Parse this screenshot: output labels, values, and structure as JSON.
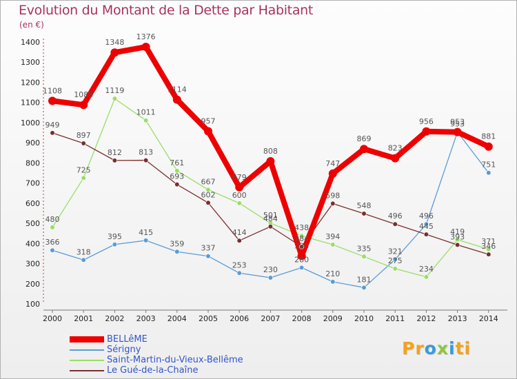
{
  "chart_data": {
    "type": "line",
    "title": "Evolution du Montant de la Dette par Habitant",
    "subtitle": "(en €)",
    "x": [
      "2000",
      "2001",
      "2002",
      "2003",
      "2004",
      "2005",
      "2006",
      "2007",
      "2008",
      "2009",
      "2010",
      "2011",
      "2012",
      "2013",
      "2014"
    ],
    "ylim": [
      100,
      1400
    ],
    "yticks": [
      100,
      200,
      300,
      400,
      500,
      600,
      700,
      800,
      900,
      1000,
      1100,
      1200,
      1300,
      1400
    ],
    "grid": false,
    "legend_position": "bottom-left",
    "series": [
      {
        "name": "BELLêME",
        "color": "#ee0000",
        "values": [
          1108,
          1088,
          1348,
          1376,
          1114,
          957,
          679,
          808,
          338,
          747,
          869,
          823,
          956,
          953,
          881
        ],
        "labels": [
          "1108",
          "1088",
          "1348",
          "1376",
          "1114",
          "957",
          "679",
          "808",
          "338",
          "747",
          "869",
          "823",
          "956",
          "953",
          "881"
        ]
      },
      {
        "name": "Sérigny",
        "color": "#5b9bd5",
        "values": [
          366,
          318,
          395,
          415,
          359,
          337,
          253,
          230,
          280,
          210,
          181,
          321,
          496,
          953,
          751
        ],
        "labels": [
          "366",
          "318",
          "395",
          "415",
          "359",
          "337",
          "253",
          "230",
          "280",
          "210",
          "181",
          "321",
          "496",
          "953",
          "751"
        ]
      },
      {
        "name": "Saint-Martin-du-Vieux-Bellême",
        "color": "#99dd66",
        "values": [
          480,
          725,
          1119,
          1011,
          761,
          667,
          600,
          501,
          438,
          394,
          335,
          275,
          234,
          419,
          371
        ],
        "labels": [
          "480",
          "725",
          "1119",
          "1011",
          "761",
          "667",
          "600",
          "501",
          "438",
          "394",
          "335",
          "275",
          "234",
          "419",
          "371"
        ]
      },
      {
        "name": "Le Gué-de-la-Chaîne",
        "color": "#7a2e2e",
        "values": [
          949,
          897,
          812,
          813,
          693,
          602,
          414,
          484,
          384,
          598,
          548,
          496,
          445,
          393,
          346
        ],
        "labels": [
          "949",
          "897",
          "812",
          "813",
          "693",
          "602",
          "414",
          "484",
          "384",
          "598",
          "548",
          "496",
          "445",
          "393",
          "346"
        ]
      }
    ]
  },
  "logo": {
    "text_parts": [
      "Pr",
      "o",
      "x",
      "i",
      "ti"
    ]
  }
}
